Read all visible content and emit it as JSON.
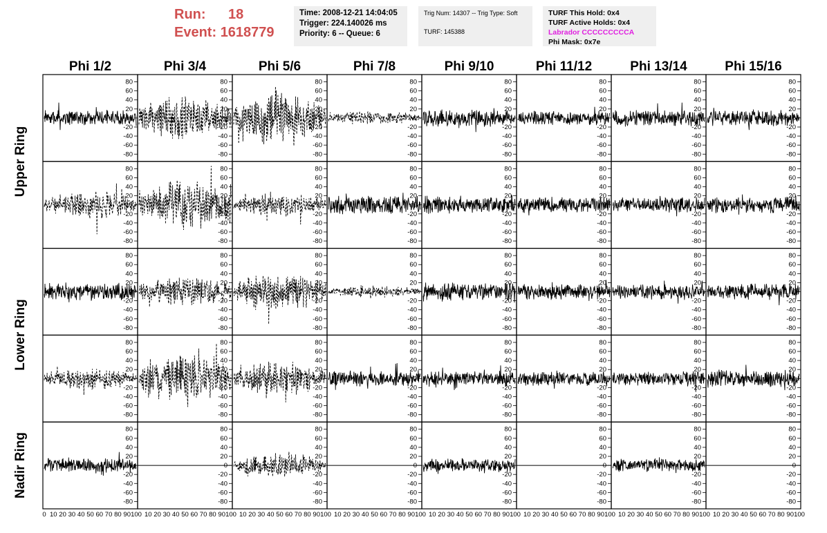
{
  "header": {
    "run_label": "Run:",
    "run_value": "18",
    "event_label": "Event:",
    "event_value": "1618779",
    "colors": {
      "run_text": "#d05050",
      "panel_bg": "#efefef",
      "labrador": "#e020e0"
    }
  },
  "info_time": {
    "time": "Time: 2008-12-21 14:04:05",
    "trigger": "Trigger: 224.140026 ms",
    "priority": "Priority: 6 -- Queue: 6"
  },
  "info_trig": {
    "trig": "Trig Num: 14307 -- Trig Type: Soft",
    "turf": "TURF: 145388"
  },
  "info_turf": {
    "hold": "TURF This Hold: 0x4",
    "active": "TURF Active Holds: 0x4",
    "labrador": "Labrador CCCCCCCCCA",
    "phimask": "Phi Mask: 0x7e"
  },
  "phi_headers": [
    "Phi 1/2",
    "Phi 3/4",
    "Phi 5/6",
    "Phi 7/8",
    "Phi 9/10",
    "Phi 11/12",
    "Phi 13/14",
    "Phi 15/16"
  ],
  "ring_labels": [
    "Upper Ring",
    "Lower Ring",
    "Nadir Ring"
  ],
  "chart_data": {
    "type": "line",
    "layout_rows": 5,
    "layout_cols": 8,
    "x_range": [
      0,
      100
    ],
    "ylim": [
      -90,
      90
    ],
    "y_ticks": [
      "80",
      "60",
      "40",
      "20",
      "0",
      "-20",
      "-40",
      "-60",
      "-80"
    ],
    "x_tick_labels_first": [
      "0",
      "10",
      "20",
      "30",
      "40",
      "50",
      "60",
      "70",
      "80",
      "90",
      "100"
    ],
    "x_tick_labels": [
      "10",
      "20",
      "30",
      "40",
      "50",
      "60",
      "70",
      "80",
      "90",
      "100"
    ],
    "grid": false,
    "rows_amplitude": [
      [
        12,
        28,
        35,
        9,
        14,
        11,
        13,
        13
      ],
      [
        18,
        32,
        16,
        15,
        14,
        13,
        12,
        13
      ],
      [
        14,
        20,
        24,
        8,
        15,
        13,
        12,
        13
      ],
      [
        14,
        32,
        22,
        13,
        12,
        12,
        12,
        14
      ],
      [
        12,
        0,
        16,
        0,
        11,
        0,
        10,
        0
      ]
    ],
    "rows_style": [
      [
        "solid",
        "dashed",
        "dashed",
        "dashed",
        "solid",
        "solid",
        "solid",
        "solid"
      ],
      [
        "dashed",
        "dashed",
        "dashed",
        "solid",
        "solid",
        "solid",
        "solid",
        "solid"
      ],
      [
        "solid",
        "dashed",
        "dashed",
        "dashed",
        "solid",
        "solid",
        "solid",
        "solid"
      ],
      [
        "dashed",
        "dashed",
        "dashed",
        "solid",
        "solid",
        "solid",
        "solid",
        "solid"
      ],
      [
        "solid",
        "flat",
        "dashed",
        "flat",
        "solid",
        "flat",
        "solid",
        "flat"
      ]
    ]
  }
}
